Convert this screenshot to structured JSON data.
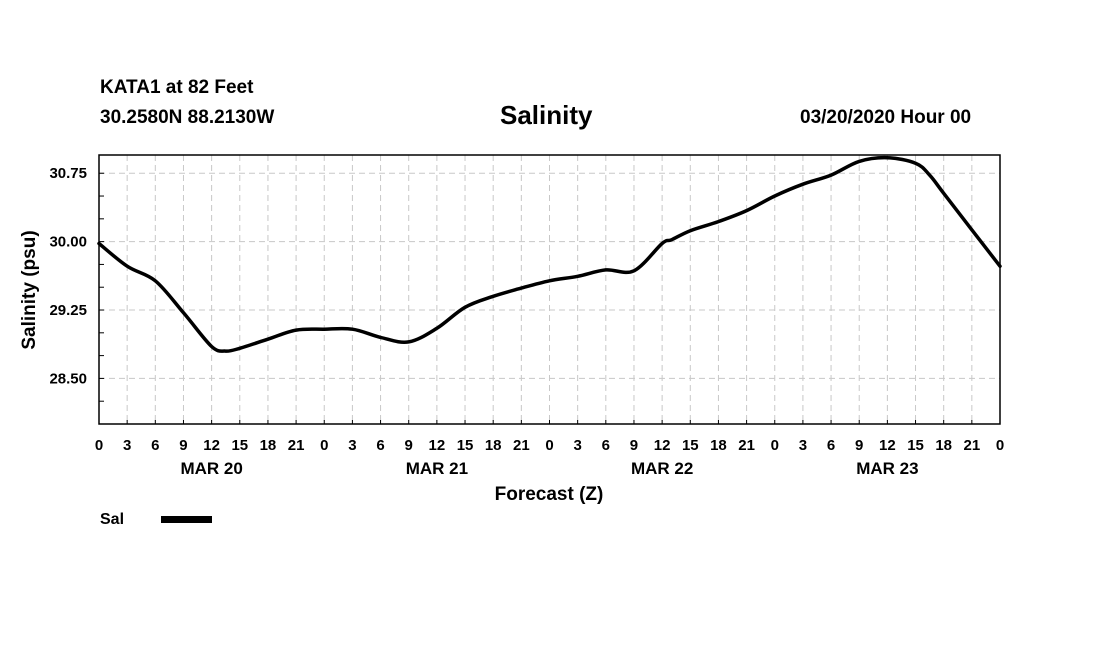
{
  "header": {
    "station": "KATA1 at 82 Feet",
    "coords": "30.2580N 88.2130W",
    "title": "Salinity",
    "date": "03/20/2020 Hour 00"
  },
  "legend": {
    "label": "Sal"
  },
  "chart_data": {
    "type": "line",
    "title": "Salinity",
    "xlabel": "Forecast (Z)",
    "ylabel": "Salinity (psu)",
    "xlim": [
      0,
      96
    ],
    "ylim": [
      28.0,
      30.95
    ],
    "y_ticks": [
      "28.50",
      "29.25",
      "30.00",
      "30.75"
    ],
    "y_tick_values": [
      28.5,
      29.25,
      30.0,
      30.75
    ],
    "x_tick_labels": [
      "0",
      "3",
      "6",
      "9",
      "12",
      "15",
      "18",
      "21",
      "0",
      "3",
      "6",
      "9",
      "12",
      "15",
      "18",
      "21",
      "0",
      "3",
      "6",
      "9",
      "12",
      "15",
      "18",
      "21",
      "0",
      "3",
      "6",
      "9",
      "12",
      "15",
      "18",
      "21",
      "0"
    ],
    "day_labels": [
      "MAR 20",
      "MAR 21",
      "MAR 22",
      "MAR 23"
    ],
    "grid": true,
    "legend_position": "bottom-left",
    "series": [
      {
        "name": "Sal",
        "x": [
          0,
          3,
          6,
          9,
          12,
          13.5,
          15,
          18,
          21,
          24,
          27,
          30,
          33,
          36,
          39,
          42,
          45,
          48,
          51,
          54,
          57,
          60,
          61,
          63,
          66,
          69,
          72,
          75,
          78,
          81,
          84,
          87,
          88.5,
          90,
          93,
          96
        ],
        "values": [
          29.98,
          29.73,
          29.57,
          29.22,
          28.85,
          28.8,
          28.83,
          28.93,
          29.03,
          29.04,
          29.04,
          28.95,
          28.9,
          29.05,
          29.28,
          29.4,
          29.49,
          29.57,
          29.62,
          29.69,
          29.68,
          29.98,
          30.02,
          30.12,
          30.22,
          30.34,
          30.5,
          30.63,
          30.73,
          30.88,
          30.92,
          30.86,
          30.73,
          30.53,
          30.13,
          29.73
        ]
      }
    ]
  }
}
